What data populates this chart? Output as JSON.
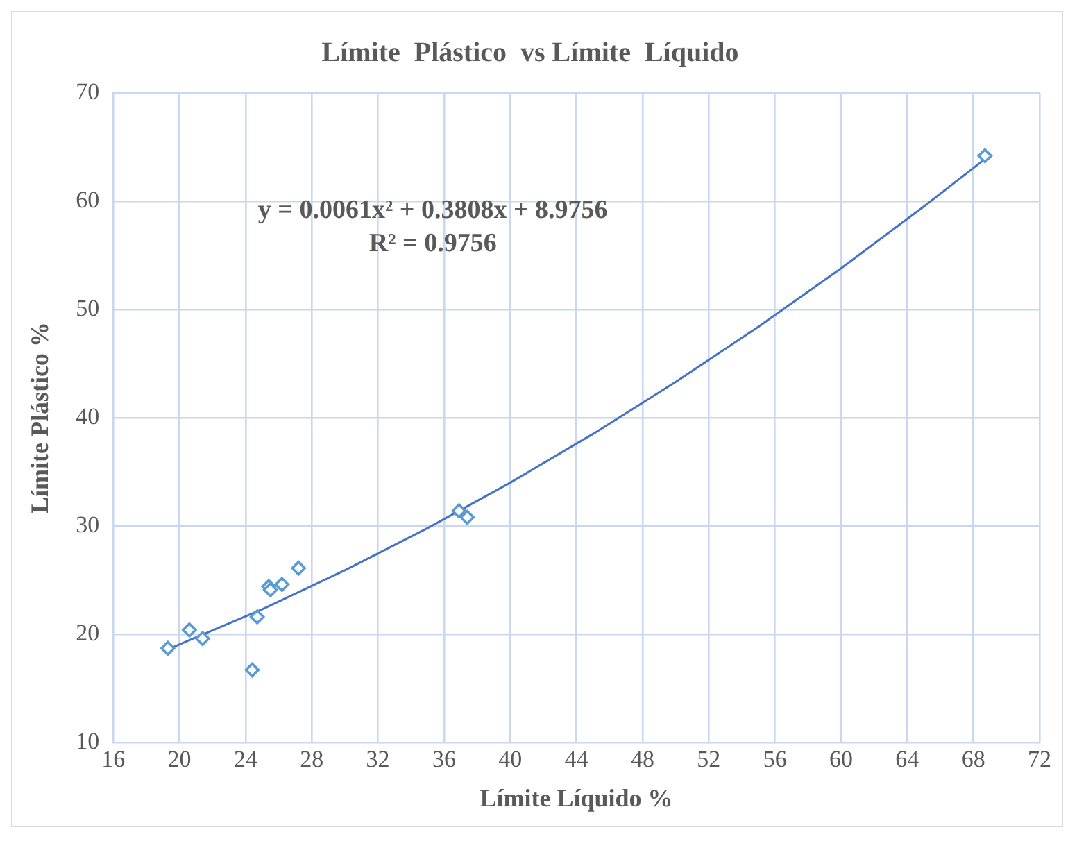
{
  "chart_data": {
    "type": "scatter",
    "title": "Límite  Plástico  vs Límite  Líquido",
    "xlabel": "Límite Líquido %",
    "ylabel": "Límite Plástico %",
    "annotations": [
      "y = 0.0061x² + 0.3808x + 8.9756",
      "R² = 0.9756"
    ],
    "series": [
      {
        "type": "scatter",
        "color": "#5b9bd5",
        "marker": "diamond",
        "x": [
          19.3,
          20.6,
          21.4,
          24.4,
          24.7,
          25.4,
          25.5,
          26.2,
          27.2,
          36.9,
          37.4,
          68.7
        ],
        "values": [
          18.7,
          20.4,
          19.6,
          16.7,
          21.6,
          24.4,
          24.1,
          24.6,
          26.1,
          31.4,
          30.8,
          64.2
        ]
      },
      {
        "type": "line",
        "color": "#4472c4",
        "marker": "none",
        "x": [
          19.3,
          25,
          30,
          35,
          40,
          45,
          50,
          55,
          60,
          65,
          68.7
        ],
        "values": [
          18.6,
          22.3,
          25.9,
          29.8,
          34.0,
          38.5,
          43.3,
          48.4,
          53.8,
          59.5,
          63.9
        ]
      }
    ],
    "xlim": [
      16,
      72
    ],
    "xticks": [
      16,
      20,
      24,
      28,
      32,
      36,
      40,
      44,
      48,
      52,
      56,
      60,
      64,
      68,
      72
    ],
    "ylim": [
      10,
      70
    ],
    "yticks": [
      10,
      20,
      30,
      40,
      50,
      60,
      70
    ],
    "grid": true,
    "legend": false
  }
}
